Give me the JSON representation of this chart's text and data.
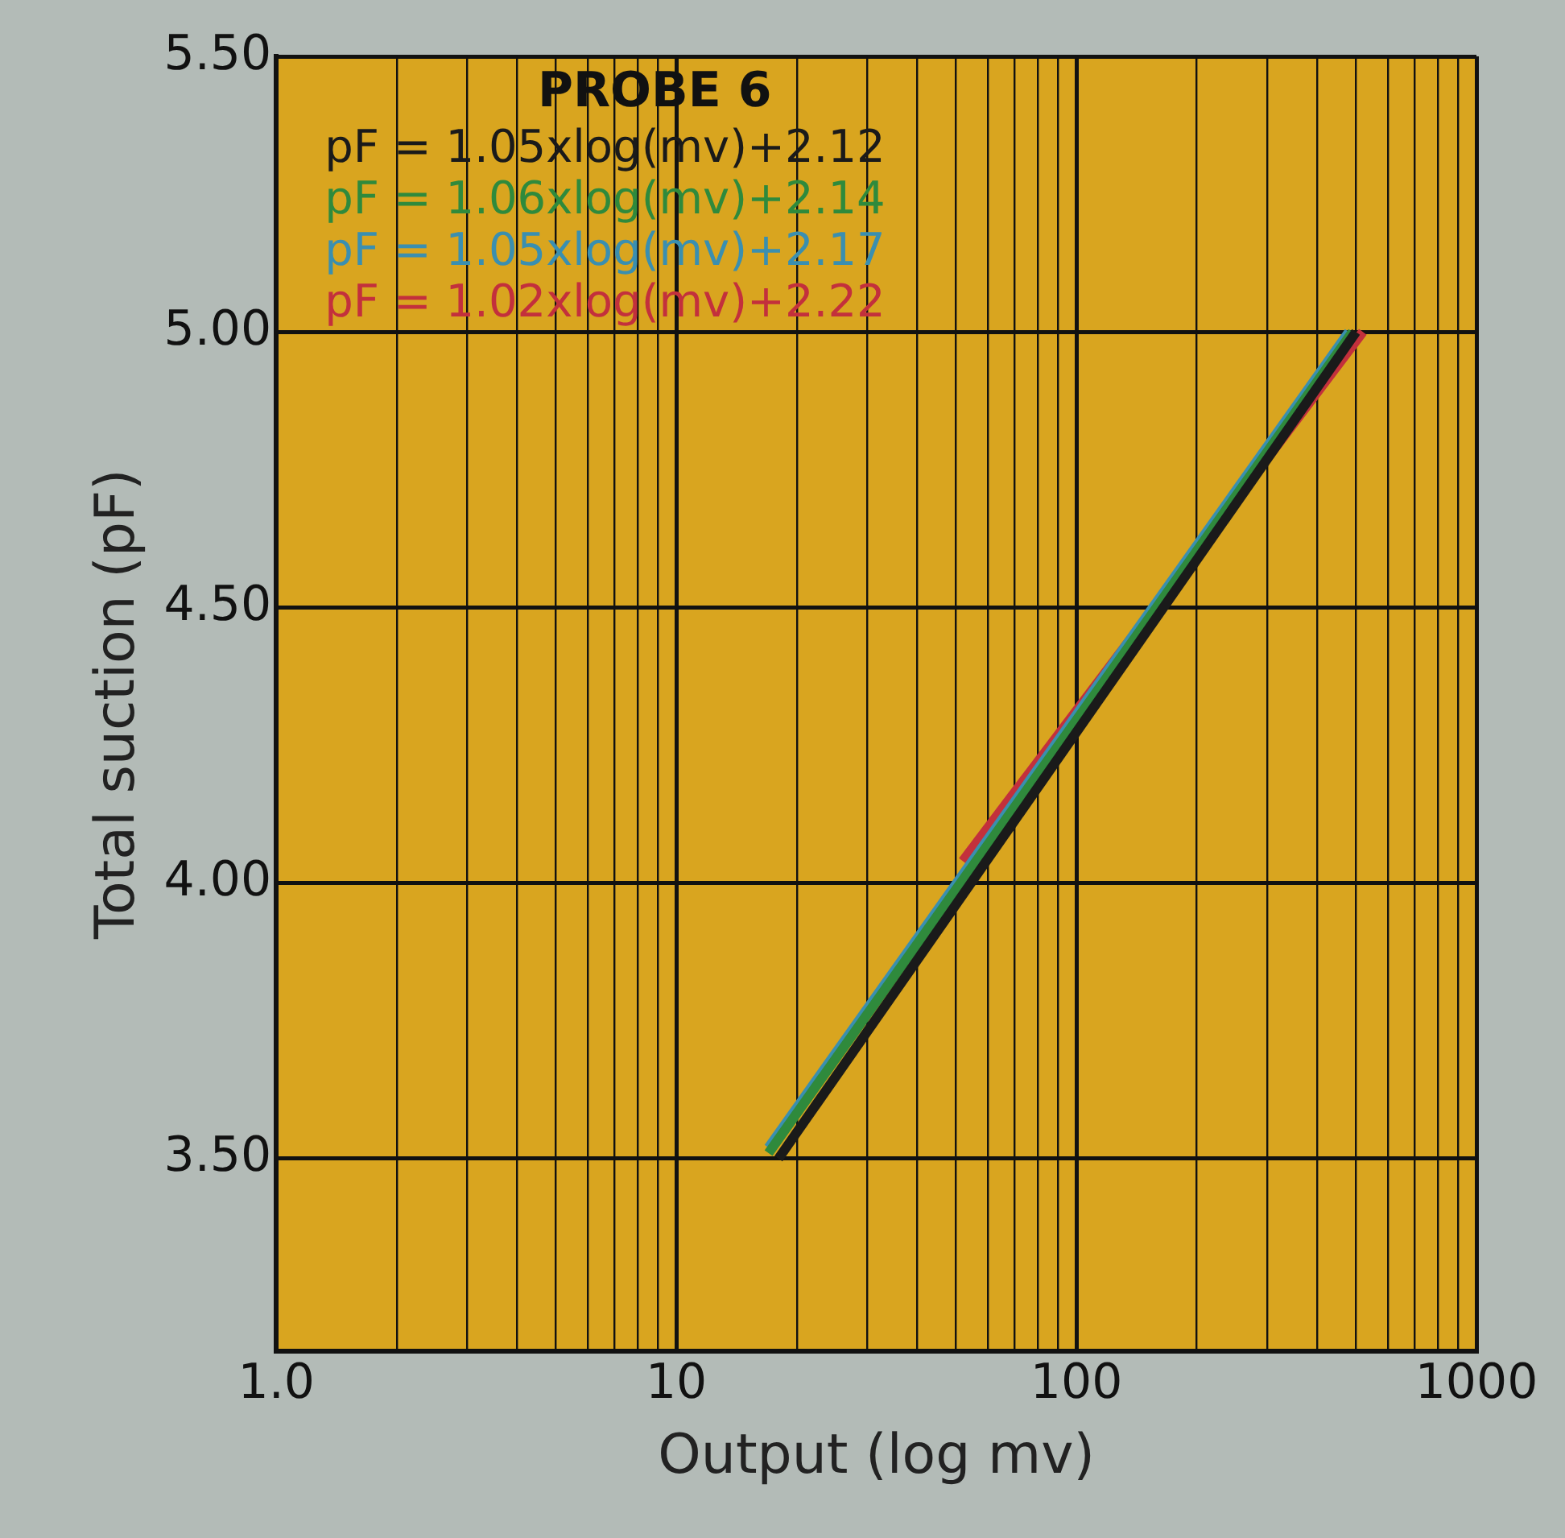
{
  "chart_data": {
    "type": "line",
    "title": "PROBE 6",
    "xlabel": "Output (log mv)",
    "ylabel": "Total suction (pF)",
    "log": "x",
    "xlim": [
      1,
      1000
    ],
    "xticks": [
      {
        "value": 1,
        "label": "1.0"
      },
      {
        "value": 2,
        "label": null
      },
      {
        "value": 3,
        "label": null
      },
      {
        "value": 4,
        "label": null
      },
      {
        "value": 5,
        "label": null
      },
      {
        "value": 6,
        "label": null
      },
      {
        "value": 7,
        "label": null
      },
      {
        "value": 8,
        "label": null
      },
      {
        "value": 9,
        "label": null
      },
      10,
      {
        "value": 20,
        "label": null
      },
      {
        "value": 30,
        "label": null
      },
      {
        "value": 40,
        "label": null
      },
      {
        "value": 50,
        "label": null
      },
      {
        "value": 60,
        "label": null
      },
      {
        "value": 70,
        "label": null
      },
      {
        "value": 80,
        "label": null
      },
      {
        "value": 90,
        "label": null
      },
      100,
      {
        "value": 200,
        "label": null
      },
      {
        "value": 300,
        "label": null
      },
      {
        "value": 400,
        "label": null
      },
      {
        "value": 500,
        "label": null
      },
      {
        "value": 600,
        "label": null
      },
      {
        "value": 700,
        "label": null
      },
      {
        "value": 800,
        "label": null
      },
      {
        "value": 900,
        "label": null
      },
      1000
    ],
    "ylim": [
      3.15,
      5.5
    ],
    "yticks": [
      {
        "value": 3.5,
        "label": "3.50"
      },
      {
        "value": 4,
        "label": "4.00"
      },
      {
        "value": 4.5,
        "label": "4.50"
      },
      {
        "value": 5,
        "label": "5.00"
      },
      {
        "value": 5.5,
        "label": "5.50"
      }
    ],
    "grid": true,
    "legend": "top left",
    "marker": "none",
    "line_style": "solid",
    "series": [
      {
        "name": "pF = 1.05xlog(mv)+2.12",
        "color": "#1a1a1a",
        "x": [
          18,
          500
        ],
        "values": [
          3.5,
          5.0
        ]
      },
      {
        "name": "pF = 1.06xlog(mv)+2.14",
        "color": "#2f8a3c",
        "x": [
          17,
          490
        ],
        "values": [
          3.51,
          5.0
        ]
      },
      {
        "name": "pF = 1.05xlog(mv)+2.17",
        "color": "#3a8fb0",
        "x": [
          17,
          480
        ],
        "values": [
          3.52,
          5.0
        ]
      },
      {
        "name": "pF = 1.02xlog(mv)+2.22",
        "color": "#c3303c",
        "x": [
          52,
          520
        ],
        "values": [
          4.04,
          5.0
        ]
      }
    ]
  }
}
